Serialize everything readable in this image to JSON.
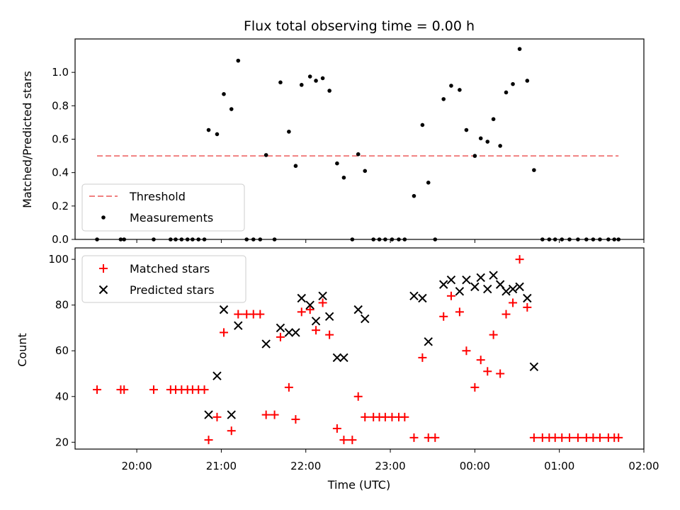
{
  "chart_data": [
    {
      "type": "scatter",
      "title": "Flux total observing time = 0.00 h",
      "xlabel": "",
      "ylabel": "Matched/Predicted stars",
      "ylim": [
        0,
        1.2
      ],
      "yticks": [
        "0.0",
        "0.2",
        "0.4",
        "0.6",
        "0.8",
        "1.0"
      ],
      "grid": false,
      "legend_position": "lower-left",
      "threshold": {
        "name": "Threshold",
        "value": 0.5,
        "x_start": 19.53,
        "x_end": 25.7,
        "color": "#f08080"
      },
      "series": [
        {
          "name": "Measurements",
          "color": "#000000",
          "x": [
            19.53,
            19.81,
            19.85,
            20.2,
            20.4,
            20.46,
            20.53,
            20.6,
            20.66,
            20.73,
            20.8,
            20.85,
            20.95,
            21.03,
            21.12,
            21.2,
            21.3,
            21.38,
            21.46,
            21.53,
            21.63,
            21.7,
            21.8,
            21.88,
            21.95,
            22.05,
            22.12,
            22.2,
            22.28,
            22.37,
            22.45,
            22.55,
            22.62,
            22.7,
            22.8,
            22.87,
            22.94,
            23.02,
            23.1,
            23.17,
            23.28,
            23.38,
            23.45,
            23.53,
            23.63,
            23.72,
            23.82,
            23.9,
            24.0,
            24.07,
            24.15,
            24.22,
            24.3,
            24.37,
            24.45,
            24.53,
            24.62,
            24.7,
            24.8,
            24.88,
            24.95,
            25.03,
            25.12,
            25.22,
            25.32,
            25.4,
            25.48,
            25.58,
            25.65,
            25.7
          ],
          "y": [
            0.0,
            0.0,
            0.0,
            0.0,
            0.0,
            0.0,
            0.0,
            0.0,
            0.0,
            0.0,
            0.0,
            0.655,
            0.63,
            0.87,
            0.78,
            1.07,
            0.0,
            0.0,
            0.0,
            0.505,
            0.0,
            0.94,
            0.645,
            0.44,
            0.925,
            0.975,
            0.95,
            0.965,
            0.89,
            0.455,
            0.37,
            0.0,
            0.51,
            0.41,
            0.0,
            0.0,
            0.0,
            0.0,
            0.0,
            0.0,
            0.26,
            0.685,
            0.34,
            0.0,
            0.84,
            0.92,
            0.895,
            0.655,
            0.5,
            0.605,
            0.585,
            0.72,
            0.56,
            0.88,
            0.93,
            1.14,
            0.95,
            0.415,
            0.0,
            0.0,
            0.0,
            0.0,
            0.0,
            0.0,
            0.0,
            0.0,
            0.0,
            0.0,
            0.0,
            0.0
          ]
        }
      ]
    },
    {
      "type": "scatter",
      "xlabel": "Time (UTC)",
      "ylabel": "Count",
      "xlim": [
        19.27,
        26.0
      ],
      "ylim": [
        17,
        105
      ],
      "xticks": [
        {
          "v": 20,
          "label": "20:00"
        },
        {
          "v": 21,
          "label": "21:00"
        },
        {
          "v": 22,
          "label": "22:00"
        },
        {
          "v": 23,
          "label": "23:00"
        },
        {
          "v": 24,
          "label": "00:00"
        },
        {
          "v": 25,
          "label": "01:00"
        },
        {
          "v": 26,
          "label": "02:00"
        }
      ],
      "yticks": [
        "20",
        "40",
        "60",
        "80",
        "100"
      ],
      "grid": false,
      "legend_position": "upper-left",
      "series": [
        {
          "name": "Matched stars",
          "marker": "plus",
          "color": "#ff0000",
          "x": [
            19.53,
            19.81,
            19.85,
            20.2,
            20.4,
            20.46,
            20.53,
            20.6,
            20.66,
            20.73,
            20.8,
            20.85,
            20.95,
            21.03,
            21.12,
            21.2,
            21.3,
            21.38,
            21.46,
            21.53,
            21.63,
            21.7,
            21.8,
            21.88,
            21.95,
            22.05,
            22.12,
            22.2,
            22.28,
            22.37,
            22.45,
            22.55,
            22.62,
            22.7,
            22.8,
            22.87,
            22.94,
            23.02,
            23.1,
            23.17,
            23.28,
            23.38,
            23.45,
            23.53,
            23.63,
            23.72,
            23.82,
            23.9,
            24.0,
            24.07,
            24.15,
            24.22,
            24.3,
            24.37,
            24.45,
            24.53,
            24.62,
            24.7,
            24.8,
            24.88,
            24.95,
            25.03,
            25.12,
            25.22,
            25.32,
            25.4,
            25.48,
            25.58,
            25.65,
            25.7
          ],
          "y": [
            43,
            43,
            43,
            43,
            43,
            43,
            43,
            43,
            43,
            43,
            43,
            21,
            31,
            68,
            25,
            76,
            76,
            76,
            76,
            32,
            32,
            66,
            44,
            30,
            77,
            78,
            69,
            81,
            67,
            26,
            21,
            21,
            40,
            31,
            31,
            31,
            31,
            31,
            31,
            31,
            22,
            57,
            22,
            22,
            75,
            84,
            77,
            60,
            44,
            56,
            51,
            67,
            50,
            76,
            81,
            100,
            79,
            22,
            22,
            22,
            22,
            22,
            22,
            22,
            22,
            22,
            22,
            22,
            22,
            22
          ]
        },
        {
          "name": "Predicted stars",
          "marker": "x",
          "color": "#000000",
          "x": [
            20.85,
            20.95,
            21.03,
            21.12,
            21.2,
            21.53,
            21.7,
            21.8,
            21.88,
            21.95,
            22.05,
            22.12,
            22.2,
            22.28,
            22.37,
            22.45,
            22.62,
            22.7,
            23.28,
            23.38,
            23.45,
            23.63,
            23.72,
            23.82,
            23.9,
            24.0,
            24.07,
            24.15,
            24.22,
            24.3,
            24.37,
            24.45,
            24.53,
            24.62,
            24.7
          ],
          "y": [
            32,
            49,
            78,
            32,
            71,
            63,
            70,
            68,
            68,
            83,
            80,
            73,
            84,
            75,
            57,
            57,
            78,
            74,
            84,
            83,
            64,
            89,
            91,
            86,
            91,
            88,
            92,
            87,
            93,
            89,
            86,
            87,
            88,
            83,
            53
          ]
        }
      ]
    }
  ]
}
